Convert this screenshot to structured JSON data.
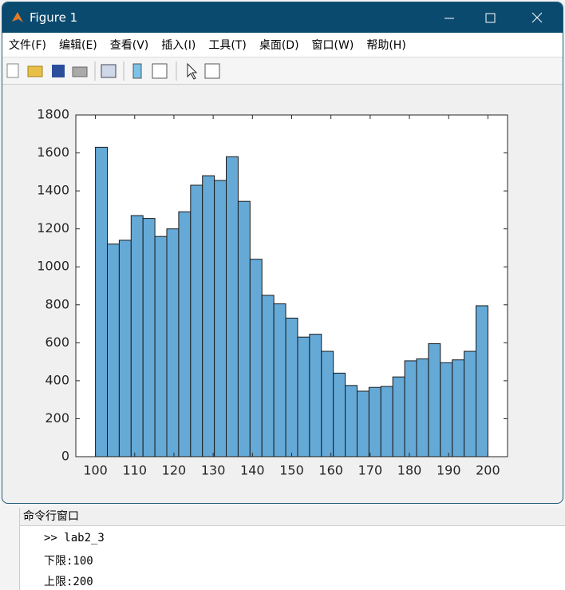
{
  "window": {
    "title": "Figure 1",
    "menu": [
      "文件(F)",
      "编辑(E)",
      "查看(V)",
      "插入(I)",
      "工具(T)",
      "桌面(D)",
      "窗口(W)",
      "帮助(H)"
    ]
  },
  "chart_data": {
    "type": "histogram",
    "color": "#65a9d7",
    "bins": [
      100,
      103.03,
      106.06,
      109.09,
      112.12,
      115.15,
      118.18,
      121.21,
      124.24,
      127.27,
      130.3,
      133.33,
      136.36,
      139.39,
      142.42,
      145.45,
      148.48,
      151.52,
      154.55,
      157.58,
      160.61,
      163.64,
      166.67,
      169.7,
      172.73,
      175.76,
      178.79,
      181.82,
      184.85,
      187.88,
      190.91,
      193.94,
      196.97,
      200
    ],
    "counts": [
      1630,
      1120,
      1140,
      1270,
      1255,
      1160,
      1200,
      1290,
      1430,
      1480,
      1455,
      1580,
      1345,
      1040,
      850,
      805,
      730,
      630,
      645,
      555,
      440,
      375,
      345,
      365,
      370,
      420,
      505,
      515,
      595,
      495,
      510,
      555,
      795
    ],
    "xlim": [
      95,
      205
    ],
    "xticks": [
      100,
      110,
      120,
      130,
      140,
      150,
      160,
      170,
      180,
      190,
      200
    ],
    "ylim": [
      0,
      1800
    ],
    "yticks": [
      0,
      200,
      400,
      600,
      800,
      1000,
      1200,
      1400,
      1600,
      1800
    ]
  },
  "command_window": {
    "title": "命令行窗口",
    "lines": [
      ">> lab2_3",
      "下限:100",
      "上限:200"
    ]
  }
}
